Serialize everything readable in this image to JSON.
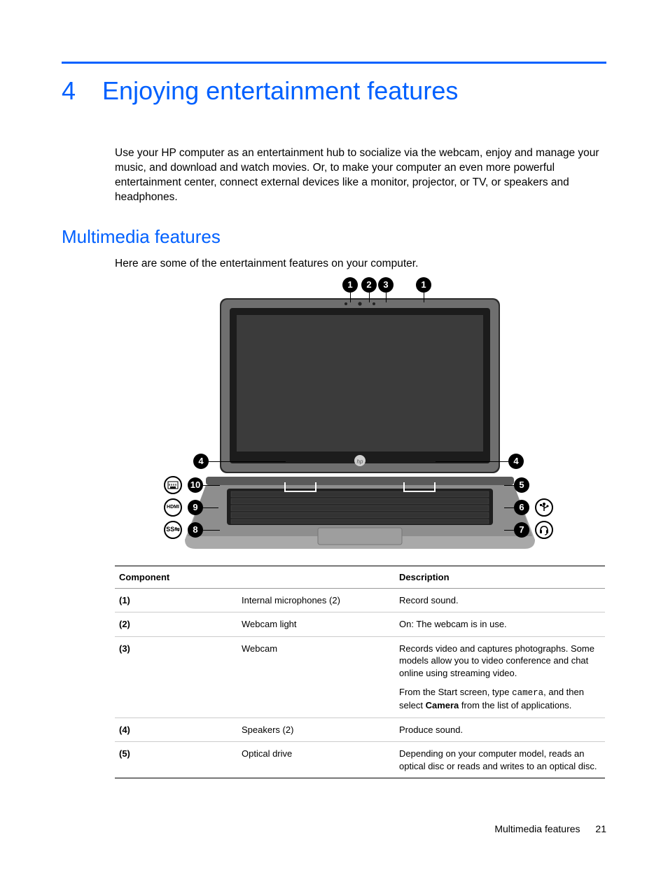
{
  "chapter": {
    "number": "4",
    "title": "Enjoying entertainment features"
  },
  "intro": "Use your HP computer as an entertainment hub to socialize via the webcam, enjoy and manage your music, and download and watch movies. Or, to make your computer an even more powerful entertainment center, connect external devices like a monitor, projector, or TV, or speakers and headphones.",
  "section": {
    "title": "Multimedia features",
    "intro": "Here are some of the entertainment features on your computer."
  },
  "diagram": {
    "top_callouts": [
      "1",
      "2",
      "3",
      "1"
    ],
    "left_callouts": [
      "4",
      "10",
      "9",
      "8"
    ],
    "right_callouts": [
      "4",
      "5",
      "6",
      "7"
    ],
    "left_port_labels": [
      "RJ45",
      "HDMI",
      "SS"
    ],
    "right_port_labels": [
      "USB",
      "audio"
    ],
    "logo": "hp"
  },
  "table": {
    "headers": {
      "component": "Component",
      "description": "Description"
    },
    "rows": [
      {
        "num": "(1)",
        "name": "Internal microphones (2)",
        "desc": [
          {
            "t": "Record sound."
          }
        ]
      },
      {
        "num": "(2)",
        "name": "Webcam light",
        "desc": [
          {
            "t": "On: The webcam is in use."
          }
        ]
      },
      {
        "num": "(3)",
        "name": "Webcam",
        "desc": [
          {
            "t": "Records video and captures photographs. Some models allow you to video conference and chat online using streaming video."
          },
          {
            "pre": "From the Start screen, type ",
            "code": "camera",
            "mid": ", and then select ",
            "bold": "Camera",
            "post": " from the list of applications."
          }
        ]
      },
      {
        "num": "(4)",
        "name": "Speakers (2)",
        "desc": [
          {
            "t": "Produce sound."
          }
        ]
      },
      {
        "num": "(5)",
        "name": "Optical drive",
        "desc": [
          {
            "t": "Depending on your computer model, reads an optical disc or reads and writes to an optical disc."
          }
        ]
      }
    ]
  },
  "footer": {
    "text": "Multimedia features",
    "page": "21"
  },
  "colors": {
    "accent": "#0060ff",
    "text": "#000000",
    "background": "#ffffff",
    "rule_gray": "#cccccc"
  }
}
